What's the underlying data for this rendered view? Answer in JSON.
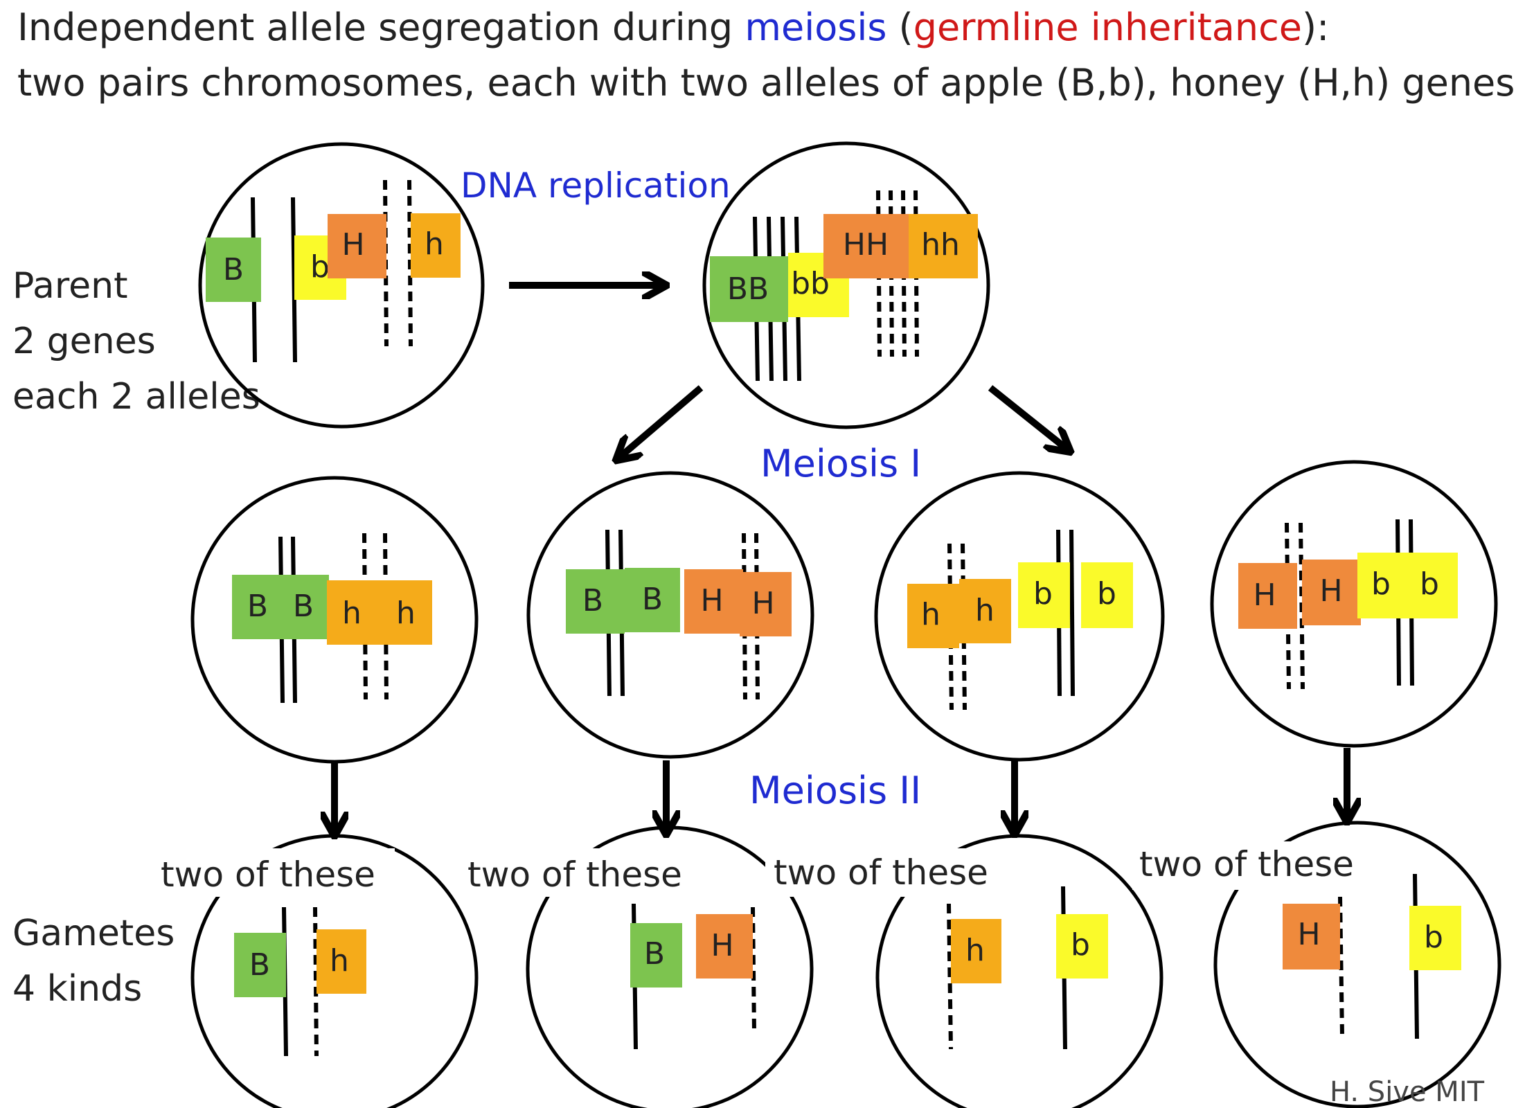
{
  "title": {
    "line1_a": "Independent allele segregation during ",
    "line1_meiosis": "meiosis",
    "line1_b": " (",
    "line1_germline": "germline inheritance",
    "line1_c": "):",
    "line2": "two pairs chromosomes, each with two alleles of apple (B,b), honey (H,h) genes"
  },
  "labels": {
    "dna_replication": "DNA replication",
    "meiosis_1": "Meiosis I",
    "meiosis_2": "Meiosis II",
    "parent_1": "Parent",
    "parent_2": "2 genes",
    "parent_3": "each 2 alleles",
    "gametes_1": "Gametes",
    "gametes_2": "4 kinds",
    "two_of_these": "two of these",
    "credit": "H. Sive MIT"
  },
  "colors": {
    "meiosis": "#1f2bd1",
    "germline": "#d01818",
    "B": "#7dc44f",
    "b": "#fafa2a",
    "H": "#ef8a3c",
    "h": "#f5ab1a"
  },
  "alleles": {
    "parent": [
      "B",
      "b",
      "H",
      "h"
    ],
    "replicated": [
      "BB",
      "bb",
      "HH",
      "hh"
    ],
    "meiosis1": [
      [
        "B",
        "B",
        "h",
        "h"
      ],
      [
        "B",
        "B",
        "H",
        "H"
      ],
      [
        "h",
        "h",
        "b",
        "b"
      ],
      [
        "H",
        "H",
        "b",
        "b"
      ]
    ],
    "gametes": [
      [
        "B",
        "h"
      ],
      [
        "B",
        "H"
      ],
      [
        "h",
        "b"
      ],
      [
        "H",
        "b"
      ]
    ]
  }
}
